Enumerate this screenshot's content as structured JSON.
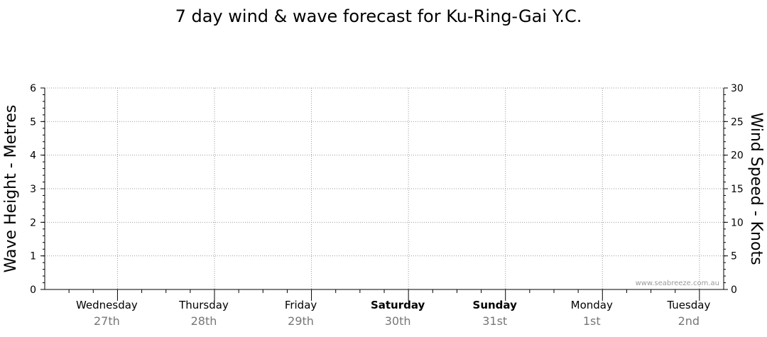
{
  "chart_data": {
    "type": "line",
    "title": "7 day wind & wave forecast for Ku-Ring-Gai Y.C.",
    "ylabel_left": "Wave Height - Metres",
    "ylabel_right": "Wind Speed - Knots",
    "ylim_left": [
      0,
      6
    ],
    "ylim_right": [
      0,
      30
    ],
    "yticks_left": [
      "0",
      "1",
      "2",
      "3",
      "4",
      "5",
      "6"
    ],
    "yticks_right": [
      "0",
      "5",
      "10",
      "15",
      "20",
      "25",
      "30"
    ],
    "grid": true,
    "days": [
      {
        "day": "Wednesday",
        "date": "27th",
        "bold": false
      },
      {
        "day": "Thursday",
        "date": "28th",
        "bold": false
      },
      {
        "day": "Friday",
        "date": "29th",
        "bold": false
      },
      {
        "day": "Saturday",
        "date": "30th",
        "bold": true
      },
      {
        "day": "Sunday",
        "date": "31st",
        "bold": true
      },
      {
        "day": "Monday",
        "date": "1st",
        "bold": false
      },
      {
        "day": "Tuesday",
        "date": "2nd",
        "bold": false
      }
    ],
    "series": []
  },
  "watermark": "www.seabreeze.com.au"
}
